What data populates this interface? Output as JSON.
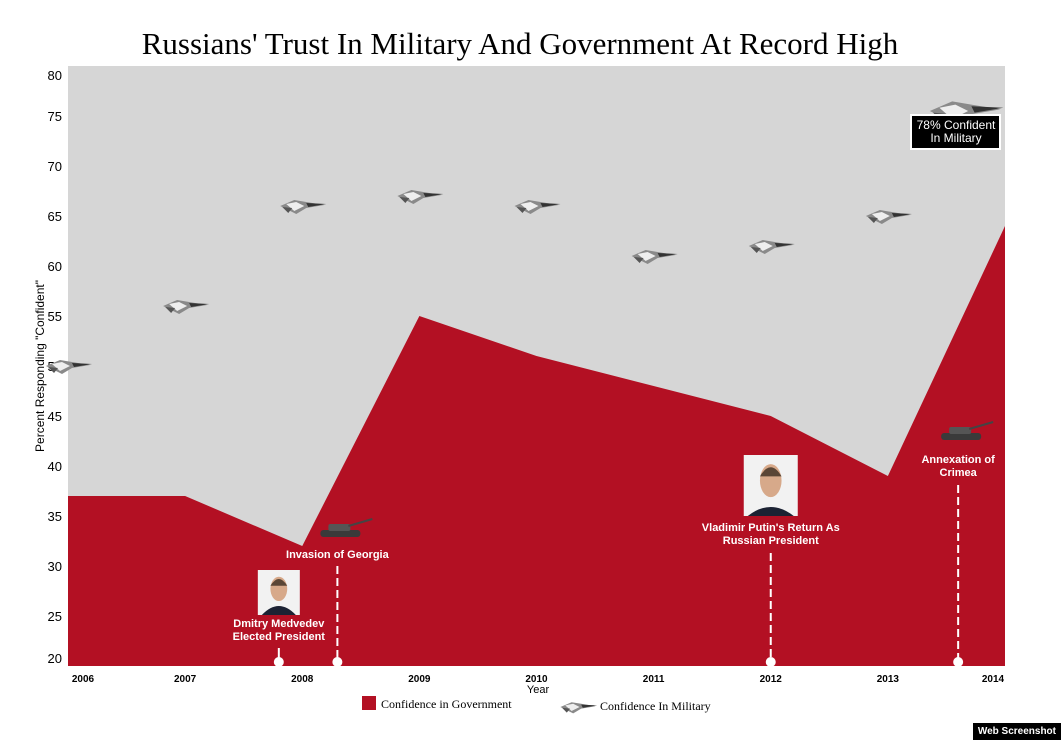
{
  "chart_data": {
    "type": "area",
    "title": "Russians' Trust In Military And Government At Record High",
    "xlabel": "Year",
    "ylabel": "Percent Responding \"Confident\"",
    "x": [
      2006,
      2007,
      2008,
      2009,
      2010,
      2011,
      2012,
      2013,
      2014
    ],
    "ylim": [
      20,
      80
    ],
    "yticks": [
      20,
      25,
      30,
      35,
      40,
      45,
      50,
      55,
      60,
      65,
      70,
      75,
      80
    ],
    "grid": false,
    "legend_position": "bottom",
    "series": [
      {
        "name": "Confidence in Government",
        "type": "area",
        "color": "#b31023",
        "values": [
          37,
          37,
          32,
          55,
          51,
          48,
          45,
          39,
          64
        ]
      },
      {
        "name": "Confidence In Military",
        "type": "jet-markers",
        "values": [
          50,
          56,
          66,
          67,
          66,
          61,
          62,
          65,
          78
        ]
      }
    ],
    "background_color": "#d6d6d6",
    "annotations": [
      {
        "x": 2007.8,
        "text": [
          "Dmitry Medvedev",
          "Elected President"
        ],
        "icon": "medvedev-photo"
      },
      {
        "x": 2008.3,
        "text": [
          "Invasion of Georgia"
        ],
        "icon": "tank-icon"
      },
      {
        "x": 2012.0,
        "text": [
          "Vladimir Putin's Return As",
          "Russian President"
        ],
        "icon": "putin-photo"
      },
      {
        "x": 2013.6,
        "text": [
          "Annexation of",
          "Crimea"
        ],
        "icon": "tank-icon"
      }
    ],
    "callout": [
      "78% Confident",
      "In Military"
    ]
  },
  "watermark": "Web Screenshot"
}
